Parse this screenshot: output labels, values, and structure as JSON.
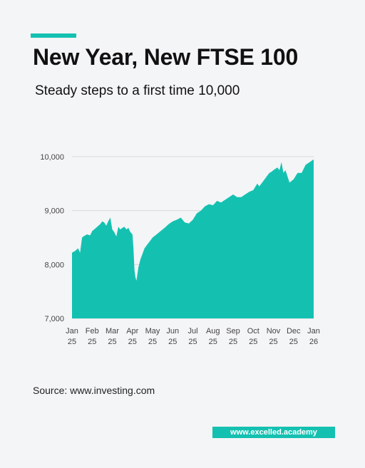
{
  "title": "New Year, New FTSE 100",
  "subtitle": "Steady steps to a first time 10,000",
  "source": "Source: www.investing.com",
  "site": "www.excelled.academy",
  "colors": {
    "accent": "#14c1b1",
    "grid": "#d6d8dc",
    "background": "#f4f5f7"
  },
  "chart_data": {
    "type": "area",
    "title": "",
    "xlabel": "",
    "ylabel": "",
    "ylim": [
      7000,
      10000
    ],
    "yticks": [
      7000,
      8000,
      9000,
      10000
    ],
    "ytick_labels": [
      "7,000",
      "8,000",
      "9,000",
      "10,000"
    ],
    "grid": "horizontal",
    "xticks": [
      {
        "month": "Jan",
        "year": "25",
        "x": 0
      },
      {
        "month": "Feb",
        "year": "25",
        "x": 1
      },
      {
        "month": "Mar",
        "year": "25",
        "x": 2
      },
      {
        "month": "Apr",
        "year": "25",
        "x": 3
      },
      {
        "month": "May",
        "year": "25",
        "x": 4
      },
      {
        "month": "Jun",
        "year": "25",
        "x": 5
      },
      {
        "month": "Jul",
        "year": "25",
        "x": 6
      },
      {
        "month": "Aug",
        "year": "25",
        "x": 7
      },
      {
        "month": "Sep",
        "year": "25",
        "x": 8
      },
      {
        "month": "Oct",
        "year": "25",
        "x": 9
      },
      {
        "month": "Nov",
        "year": "25",
        "x": 10
      },
      {
        "month": "Dec",
        "year": "25",
        "x": 11
      },
      {
        "month": "Jan",
        "year": "26",
        "x": 12
      }
    ],
    "series": [
      {
        "x": [
          0,
          0.15,
          0.3,
          0.4,
          0.5,
          0.6,
          0.75,
          0.9,
          1.0,
          1.1,
          1.25,
          1.4,
          1.5,
          1.6,
          1.7,
          1.8,
          1.9,
          2.0,
          2.1,
          2.2,
          2.3,
          2.4,
          2.5,
          2.6,
          2.7,
          2.8,
          2.9,
          3.0,
          3.05,
          3.1,
          3.15,
          3.2,
          3.3,
          3.4,
          3.5,
          3.6,
          3.7,
          3.8,
          3.9,
          4.0,
          4.2,
          4.4,
          4.6,
          4.8,
          5.0,
          5.2,
          5.4,
          5.6,
          5.8,
          6.0,
          6.2,
          6.4,
          6.6,
          6.8,
          7.0,
          7.2,
          7.4,
          7.6,
          7.8,
          8.0,
          8.2,
          8.4,
          8.6,
          8.8,
          9.0,
          9.2,
          9.3,
          9.5,
          9.7,
          9.8,
          9.9,
          10.0,
          10.2,
          10.3,
          10.4,
          10.5,
          10.6,
          10.8,
          11.0,
          11.2,
          11.4,
          11.6,
          11.8,
          12.0
        ],
        "values": [
          8220,
          8250,
          8300,
          8220,
          8500,
          8530,
          8560,
          8540,
          8620,
          8650,
          8700,
          8750,
          8800,
          8780,
          8720,
          8800,
          8870,
          8650,
          8600,
          8520,
          8700,
          8650,
          8680,
          8700,
          8650,
          8680,
          8600,
          8560,
          8300,
          7900,
          7760,
          7700,
          7950,
          8100,
          8200,
          8300,
          8350,
          8400,
          8450,
          8500,
          8560,
          8620,
          8680,
          8750,
          8800,
          8830,
          8870,
          8780,
          8760,
          8830,
          8950,
          9000,
          9080,
          9120,
          9100,
          9180,
          9150,
          9200,
          9250,
          9300,
          9250,
          9250,
          9300,
          9350,
          9380,
          9500,
          9450,
          9550,
          9650,
          9700,
          9720,
          9750,
          9800,
          9750,
          9900,
          9700,
          9750,
          9520,
          9580,
          9700,
          9700,
          9850,
          9900,
          9950
        ]
      }
    ]
  }
}
